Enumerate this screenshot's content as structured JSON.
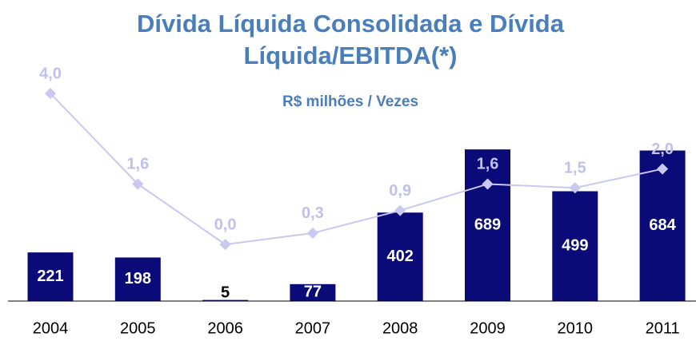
{
  "chart_data": {
    "type": "bar",
    "title": "Dívida Líquida Consolidada e Dívida Líquida/EBITDA(*)",
    "subtitle": "R$ milhões / Vezes",
    "categories": [
      "2004",
      "2005",
      "2006",
      "2007",
      "2008",
      "2009",
      "2010",
      "2011"
    ],
    "series": [
      {
        "type": "bar",
        "color": "#0a0a78",
        "values": [
          221,
          198,
          5,
          77,
          402,
          689,
          499,
          684
        ]
      },
      {
        "type": "line",
        "axis": "y2",
        "color": "#c8c8f0",
        "values": [
          4.0,
          1.6,
          0.0,
          0.3,
          0.9,
          1.6,
          1.5,
          2.0
        ],
        "value_labels": [
          "4,0",
          "1,6",
          "0,0",
          "0,3",
          "0,9",
          "1,6",
          "1,5",
          "2,0"
        ]
      }
    ],
    "ylim": [
      0,
      1005
    ],
    "y2lim": [
      -1.5,
      4.36
    ]
  }
}
